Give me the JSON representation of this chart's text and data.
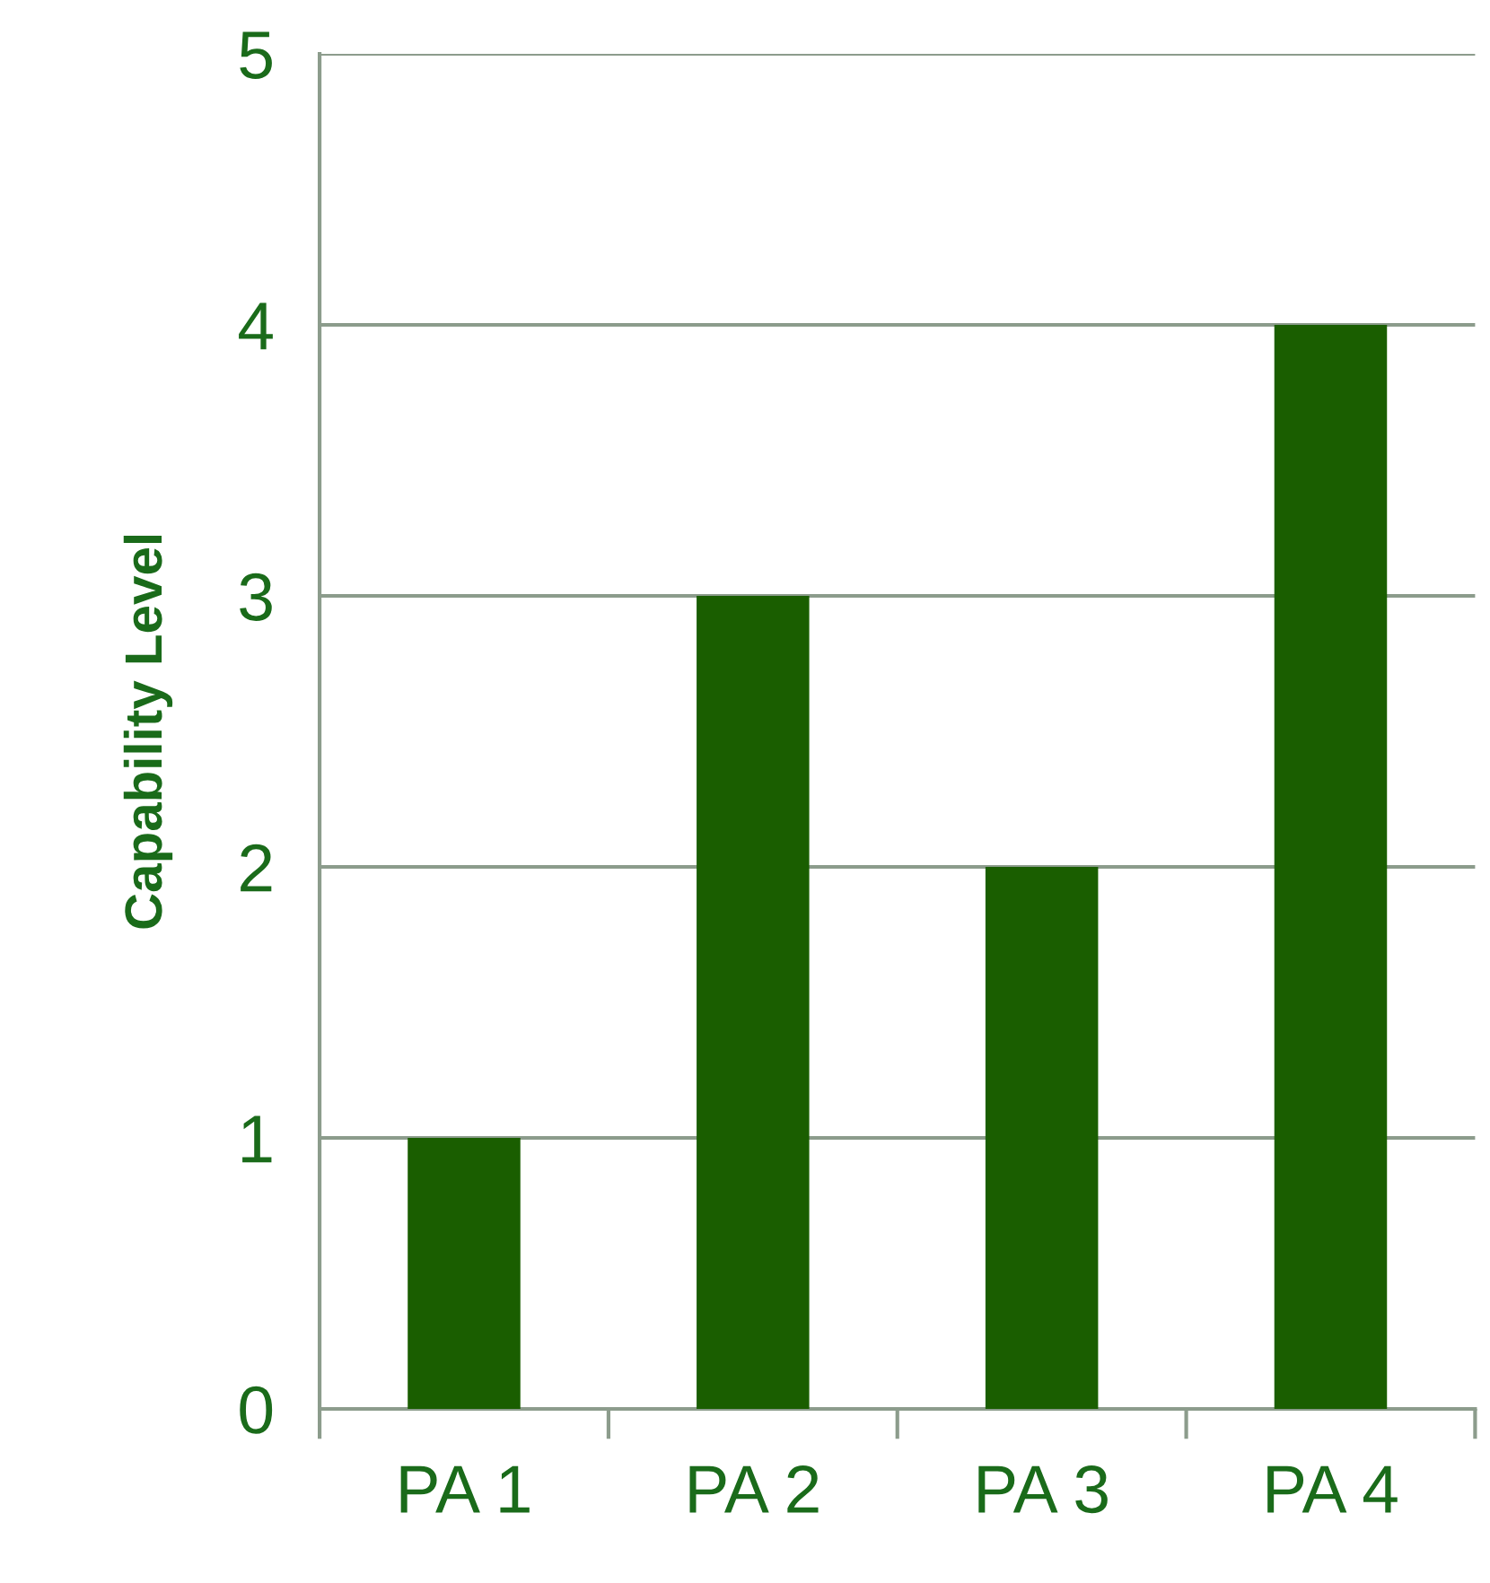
{
  "chart_data": {
    "type": "bar",
    "ylabel": "Capability Level",
    "categories": [
      "PA 1",
      "PA 2",
      "PA 3",
      "PA 4"
    ],
    "values": [
      1,
      3,
      2,
      4
    ],
    "color": "#1a5e00",
    "ylim": [
      0,
      5
    ],
    "yticks": [
      0,
      1,
      2,
      3,
      4,
      5
    ],
    "grid": "y"
  }
}
